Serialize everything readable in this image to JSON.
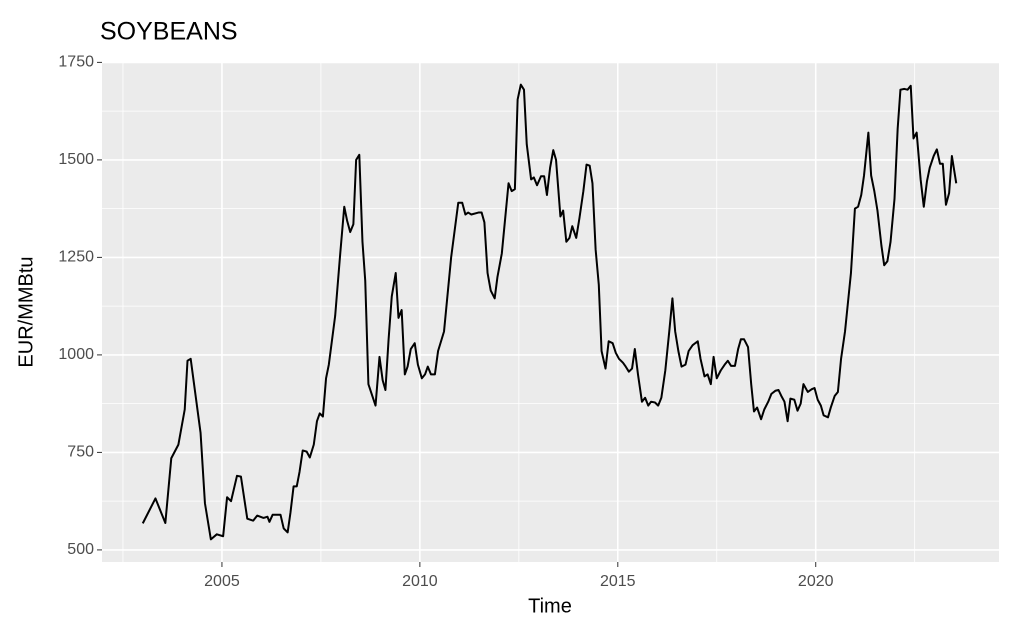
{
  "chart_data": {
    "type": "line",
    "title": "SOYBEANS",
    "x_label": "Time",
    "y_label": "EUR/MMBtu",
    "grid": true,
    "xlim": [
      2001.97,
      2024.63
    ],
    "ylim": [
      469,
      1751
    ],
    "xticks": [
      2005,
      2010,
      2015,
      2020
    ],
    "yticks": [
      500,
      750,
      1000,
      1250,
      1500,
      {
        "value": 1750,
        "label": "1750"
      }
    ],
    "series": [
      {
        "name": "SOYBEANS",
        "color": "#000000",
        "x": [
          2003.0,
          2003.32,
          2003.57,
          2003.72,
          2003.9,
          2004.06,
          2004.13,
          2004.21,
          2004.46,
          2004.57,
          2004.72,
          2004.87,
          2005.03,
          2005.13,
          2005.23,
          2005.38,
          2005.48,
          2005.64,
          2005.79,
          2005.89,
          2006.05,
          2006.15,
          2006.2,
          2006.28,
          2006.48,
          2006.56,
          2006.66,
          2006.73,
          2006.81,
          2006.89,
          2006.96,
          2007.04,
          2007.14,
          2007.22,
          2007.32,
          2007.4,
          2007.47,
          2007.55,
          2007.63,
          2007.7,
          2007.86,
          2007.98,
          2008.09,
          2008.16,
          2008.24,
          2008.32,
          2008.39,
          2008.47,
          2008.55,
          2008.62,
          2008.7,
          2008.88,
          2008.98,
          2009.06,
          2009.13,
          2009.21,
          2009.29,
          2009.39,
          2009.46,
          2009.54,
          2009.62,
          2009.69,
          2009.77,
          2009.87,
          2009.95,
          2010.05,
          2010.13,
          2010.2,
          2010.28,
          2010.38,
          2010.46,
          2010.61,
          2010.79,
          2010.97,
          2011.07,
          2011.15,
          2011.22,
          2011.3,
          2011.48,
          2011.56,
          2011.63,
          2011.71,
          2011.79,
          2011.89,
          2011.96,
          2012.07,
          2012.24,
          2012.32,
          2012.4,
          2012.47,
          2012.55,
          2012.63,
          2012.7,
          2012.81,
          2012.88,
          2012.96,
          2013.06,
          2013.14,
          2013.21,
          2013.29,
          2013.37,
          2013.44,
          2013.55,
          2013.62,
          2013.7,
          2013.78,
          2013.85,
          2013.95,
          2014.03,
          2014.13,
          2014.21,
          2014.29,
          2014.36,
          2014.44,
          2014.52,
          2014.59,
          2014.69,
          2014.77,
          2014.87,
          2014.95,
          2015.03,
          2015.13,
          2015.2,
          2015.28,
          2015.36,
          2015.43,
          2015.51,
          2015.61,
          2015.69,
          2015.77,
          2015.84,
          2015.94,
          2016.02,
          2016.1,
          2016.2,
          2016.3,
          2016.38,
          2016.45,
          2016.53,
          2016.61,
          2016.71,
          2016.79,
          2016.89,
          2017.02,
          2017.09,
          2017.19,
          2017.27,
          2017.35,
          2017.42,
          2017.5,
          2017.6,
          2017.7,
          2017.78,
          2017.86,
          2017.96,
          2018.04,
          2018.11,
          2018.19,
          2018.29,
          2018.37,
          2018.44,
          2018.52,
          2018.62,
          2018.7,
          2018.8,
          2018.88,
          2018.98,
          2019.06,
          2019.13,
          2019.21,
          2019.29,
          2019.36,
          2019.46,
          2019.54,
          2019.62,
          2019.69,
          2019.8,
          2019.9,
          2019.97,
          2020.05,
          2020.13,
          2020.2,
          2020.31,
          2020.38,
          2020.48,
          2020.56,
          2020.64,
          2020.74,
          2020.82,
          2020.89,
          2020.99,
          2021.07,
          2021.15,
          2021.22,
          2021.33,
          2021.4,
          2021.48,
          2021.56,
          2021.66,
          2021.73,
          2021.81,
          2021.89,
          2021.99,
          2022.07,
          2022.14,
          2022.24,
          2022.32,
          2022.4,
          2022.47,
          2022.55,
          2022.65,
          2022.73,
          2022.81,
          2022.88,
          2022.98,
          2023.06,
          2023.14,
          2023.21,
          2023.29,
          2023.37,
          2023.44,
          2023.55
        ],
        "values": [
          568,
          632,
          569,
          735,
          770,
          860,
          985,
          990,
          800,
          620,
          527,
          540,
          535,
          635,
          625,
          690,
          688,
          580,
          575,
          588,
          582,
          585,
          572,
          590,
          590,
          555,
          545,
          595,
          663,
          663,
          700,
          755,
          752,
          737,
          770,
          830,
          850,
          842,
          940,
          975,
          1100,
          1250,
          1380,
          1345,
          1315,
          1335,
          1500,
          1513,
          1290,
          1190,
          925,
          870,
          995,
          935,
          910,
          1040,
          1150,
          1210,
          1095,
          1115,
          950,
          970,
          1015,
          1030,
          975,
          940,
          950,
          970,
          950,
          950,
          1010,
          1060,
          1250,
          1390,
          1390,
          1360,
          1365,
          1360,
          1365,
          1365,
          1340,
          1210,
          1165,
          1145,
          1200,
          1260,
          1440,
          1420,
          1425,
          1655,
          1693,
          1680,
          1540,
          1450,
          1455,
          1435,
          1458,
          1458,
          1410,
          1480,
          1525,
          1500,
          1355,
          1370,
          1290,
          1300,
          1330,
          1300,
          1350,
          1420,
          1488,
          1485,
          1440,
          1270,
          1180,
          1010,
          965,
          1035,
          1030,
          1005,
          990,
          980,
          970,
          957,
          965,
          1015,
          950,
          880,
          890,
          870,
          880,
          878,
          870,
          890,
          960,
          1060,
          1145,
          1060,
          1010,
          970,
          975,
          1010,
          1025,
          1035,
          990,
          945,
          950,
          925,
          995,
          940,
          960,
          975,
          985,
          972,
          972,
          1015,
          1040,
          1040,
          1020,
          925,
          855,
          865,
          835,
          860,
          880,
          900,
          908,
          910,
          895,
          880,
          830,
          888,
          885,
          857,
          875,
          925,
          905,
          912,
          915,
          885,
          870,
          845,
          840,
          865,
          895,
          905,
          990,
          1060,
          1140,
          1210,
          1375,
          1380,
          1410,
          1460,
          1570,
          1460,
          1420,
          1370,
          1280,
          1230,
          1240,
          1290,
          1400,
          1580,
          1680,
          1682,
          1680,
          1690,
          1555,
          1570,
          1450,
          1380,
          1445,
          1480,
          1510,
          1527,
          1490,
          1490,
          1385,
          1415,
          1510,
          1440
        ]
      }
    ]
  }
}
